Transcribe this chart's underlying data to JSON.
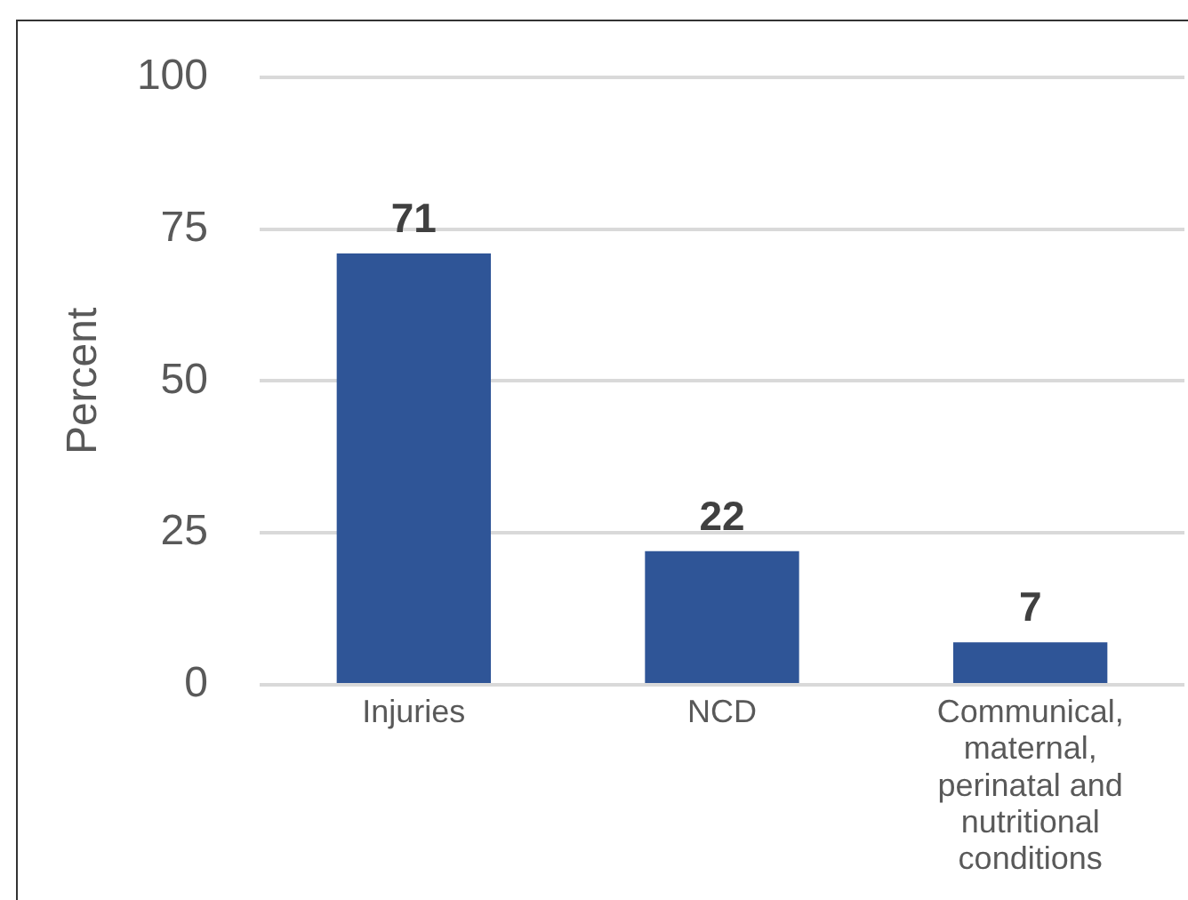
{
  "chart_data": {
    "type": "bar",
    "ylabel": "Percent",
    "categories": [
      "Injuries",
      "NCD",
      "Communical, maternal, perinatal and nutritional conditions"
    ],
    "values": [
      71,
      22,
      7
    ],
    "color": "#2f5597",
    "ylim": [
      0,
      100
    ],
    "yticks": [
      0,
      25,
      50,
      75,
      100
    ],
    "grid": "y",
    "data_labels": true,
    "legend": false
  }
}
